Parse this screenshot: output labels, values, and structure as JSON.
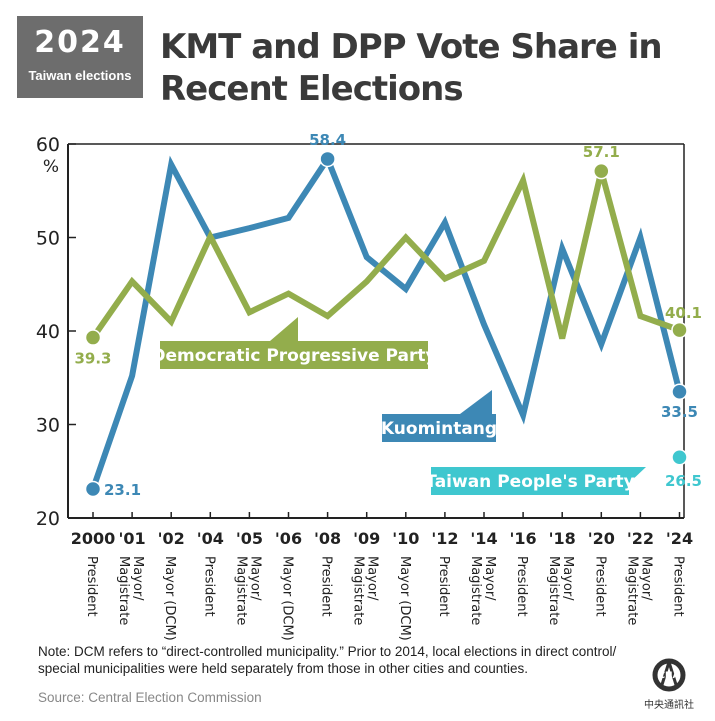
{
  "header": {
    "logo_year": "2024",
    "logo_sub": "Taiwan elections",
    "title": "KMT and DPP Vote Share in Recent Elections"
  },
  "chart_data": {
    "type": "line",
    "categories": [
      "2000",
      "'01",
      "'02",
      "'04",
      "'05",
      "'06",
      "'08",
      "'09",
      "'10",
      "'12",
      "'14",
      "'16",
      "'18",
      "'20",
      "'22",
      "'24"
    ],
    "election_types": [
      "President",
      "Mayor/ Magistrate",
      "Mayor (DCM)",
      "President",
      "Mayor/ Magistrate",
      "Mayor (DCM)",
      "President",
      "Mayor/ Magistrate",
      "Mayor (DCM)",
      "President",
      "Mayor/ Magistrate",
      "President",
      "Mayor/ Magistrate",
      "President",
      "Mayor/ Magistrate",
      "President"
    ],
    "y_unit": "%",
    "ylim": [
      20,
      60
    ],
    "yticks": [
      20,
      30,
      40,
      50,
      60
    ],
    "series": [
      {
        "name": "Kuomintang",
        "color": "#3d88b5",
        "values": [
          23.1,
          35.2,
          57.8,
          50.0,
          51.0,
          52.1,
          58.4,
          47.9,
          44.5,
          51.6,
          40.7,
          31.0,
          48.8,
          38.6,
          50.0,
          33.5
        ]
      },
      {
        "name": "Democratic Progressive Party",
        "color": "#93ad4c",
        "values": [
          39.3,
          45.3,
          41.0,
          50.1,
          42.0,
          44.0,
          41.6,
          45.3,
          50.0,
          45.6,
          47.5,
          56.1,
          39.2,
          57.1,
          41.6,
          40.1
        ]
      },
      {
        "name": "Taiwan People's Party",
        "color": "#3fc7cf",
        "values": [
          null,
          null,
          null,
          null,
          null,
          null,
          null,
          null,
          null,
          null,
          null,
          null,
          null,
          null,
          null,
          26.5
        ]
      }
    ],
    "annotations": {
      "kmt_first": "23.1",
      "kmt_peak": "58.4",
      "kmt_last": "33.5",
      "dpp_first": "39.3",
      "dpp_peak": "57.1",
      "dpp_last": "40.1",
      "tpp_last": "26.5"
    }
  },
  "footer": {
    "note": "Note: DCM refers to “direct-controlled municipality.” Prior to 2014, local elections in direct control/ special municipalities were held separately from those in other cities and counties.",
    "source": "Source: Central Election Commission",
    "brand": "CNA",
    "brand_sub": "中央通訊社"
  }
}
